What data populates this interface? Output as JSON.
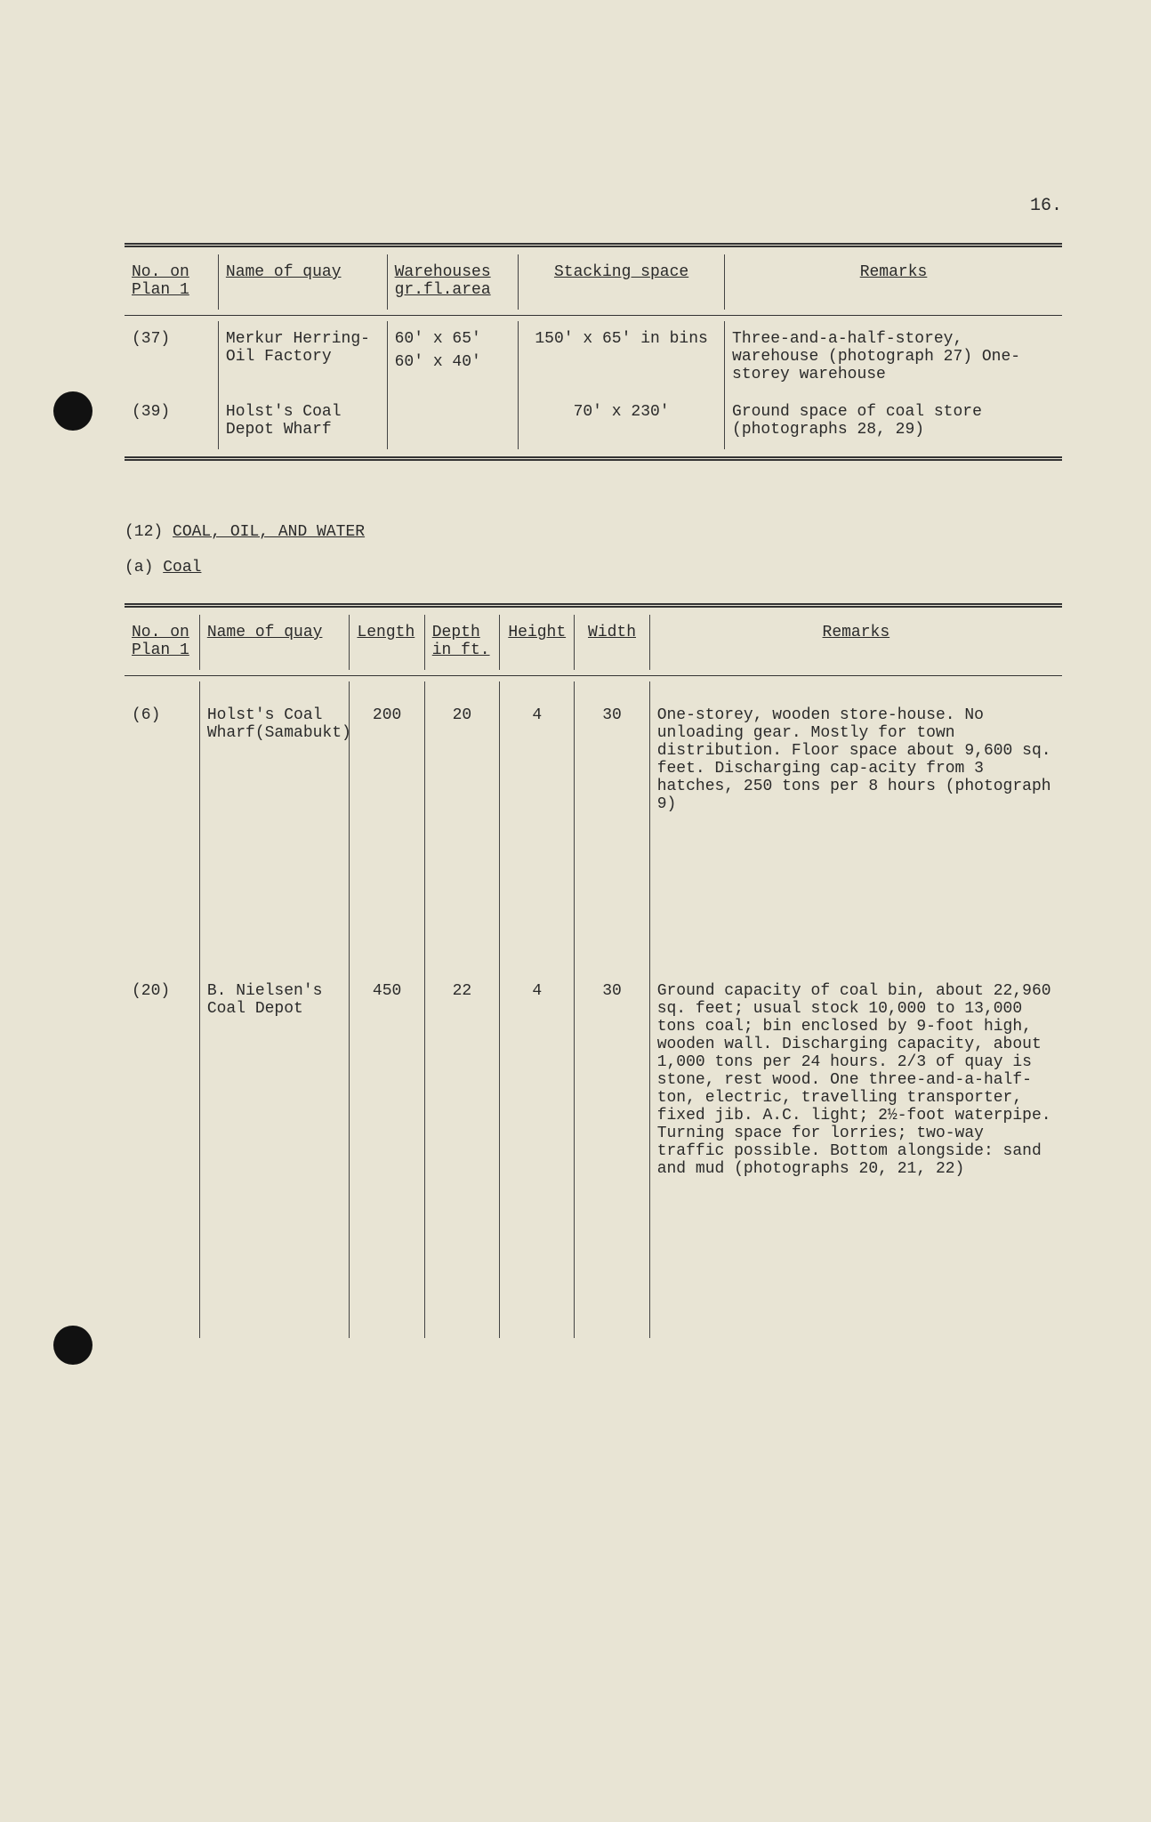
{
  "page_number": "16.",
  "table1": {
    "headers": {
      "c1a": "No. on",
      "c1b": "Plan 1",
      "c2": "Name of quay",
      "c3a": "Warehouses",
      "c3b": "gr.fl.area",
      "c4": "Stacking space",
      "c5": "Remarks"
    },
    "rows": [
      {
        "no": "(37)",
        "name": "Merkur Herring-Oil Factory",
        "wh1": "60' x 65'",
        "wh2": "60' x 40'",
        "stack": "150' x 65' in bins",
        "remarks": "Three-and-a-half-storey, warehouse (photograph 27) One-storey warehouse"
      },
      {
        "no": "(39)",
        "name": "Holst's Coal Depot Wharf",
        "wh1": "",
        "wh2": "",
        "stack": "70' x 230'",
        "remarks": "Ground space of coal store (photographs 28, 29)"
      }
    ]
  },
  "section": {
    "num": "(12)",
    "title": "COAL, OIL, AND WATER",
    "sub_letter": "(a)",
    "sub_title": "Coal"
  },
  "table2": {
    "headers": {
      "c1a": "No. on",
      "c1b": "Plan 1",
      "c2": "Name of quay",
      "c3": "Length",
      "c4a": "Depth",
      "c4b": "in ft.",
      "c5": "Height",
      "c6": "Width",
      "c7": "Remarks"
    },
    "rows": [
      {
        "no": "(6)",
        "name": "Holst's Coal Wharf(Samabukt)",
        "length": "200",
        "depth": "20",
        "height": "4",
        "width": "30",
        "remarks": "One-storey, wooden store-house. No unloading gear. Mostly for town distribution. Floor space about 9,600 sq. feet. Discharging cap-acity from 3 hatches, 250 tons per 8 hours (photograph 9)"
      },
      {
        "no": "(20)",
        "name": "B. Nielsen's Coal Depot",
        "length": "450",
        "depth": "22",
        "height": "4",
        "width": "30",
        "remarks": "Ground capacity of coal bin, about 22,960 sq. feet; usual stock 10,000 to 13,000 tons coal; bin enclosed by 9-foot high, wooden wall. Discharging capacity, about 1,000 tons per 24 hours. 2/3 of quay is stone, rest wood. One three-and-a-half-ton, electric, travelling transporter, fixed jib. A.C. light; 2½-foot waterpipe. Turning space for lorries; two-way traffic possible. Bottom alongside: sand and mud (photographs 20, 21, 22)"
      }
    ]
  }
}
